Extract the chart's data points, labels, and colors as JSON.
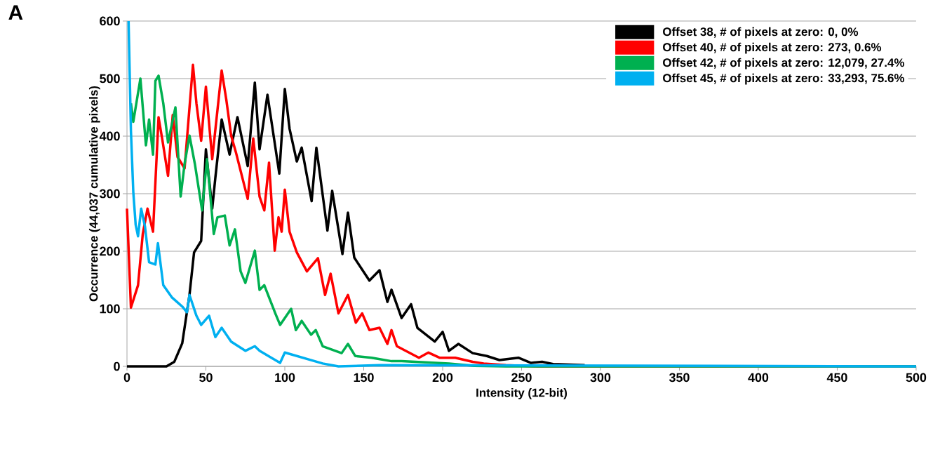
{
  "chart_data": {
    "type": "line",
    "xlabel": "Intensity (12-bit)",
    "ylabel": "Occurrence (44,037 cumulative pixels)",
    "annotations": [
      "A"
    ],
    "xlim": [
      0,
      500
    ],
    "xticks": [
      0,
      50,
      100,
      150,
      200,
      250,
      300,
      350,
      400,
      450,
      500
    ],
    "ylim": [
      0,
      600
    ],
    "yticks": [
      0,
      100,
      200,
      300,
      400,
      500,
      600
    ],
    "grid": "y",
    "legend": "top right",
    "line_style": "solid",
    "marker": "none",
    "series": [
      {
        "name": "Offset 38, # of pixels at zero: 0, 0%",
        "color": "#000000",
        "x": [
          0,
          25,
          30,
          35,
          39.6,
          42.5,
          47,
          50,
          54,
          56,
          60,
          65,
          70,
          76.5,
          81,
          84,
          89,
          96.5,
          100,
          103,
          107.6,
          110.7,
          117,
          120,
          127,
          130,
          136.5,
          140,
          144,
          153.6,
          160,
          165,
          167.6,
          174,
          180,
          184,
          195,
          200,
          204,
          210,
          219,
          228,
          236,
          248,
          256,
          263,
          270,
          290
        ],
        "values": [
          0,
          0,
          8,
          40,
          124,
          198,
          218,
          377,
          274,
          328,
          429,
          368,
          433,
          348,
          493,
          377,
          472,
          335,
          482,
          413,
          356,
          380,
          287,
          380,
          236,
          305,
          195,
          267,
          189,
          149,
          167,
          112,
          133,
          84,
          108,
          67,
          43,
          60,
          27,
          39,
          23,
          18,
          11,
          15,
          6,
          8,
          4,
          2
        ]
      },
      {
        "name": "Offset 40, # of pixels at zero: 273, 0.6%",
        "color": "#ff0000",
        "x": [
          0,
          2.5,
          7,
          10,
          13,
          16.5,
          20,
          22.5,
          26,
          29,
          32,
          36.5,
          41.8,
          44,
          47,
          50,
          54,
          60,
          63,
          66,
          69,
          76.5,
          80,
          84,
          87,
          90,
          93.6,
          96,
          98,
          100,
          103,
          107.6,
          114,
          121,
          125.5,
          129,
          134,
          140,
          145,
          149,
          153.6,
          160,
          165,
          167.6,
          171,
          185,
          191,
          198,
          208,
          219,
          226,
          240,
          260,
          500
        ],
        "values": [
          274,
          102,
          141,
          230,
          274,
          234,
          433,
          392,
          331,
          437,
          364,
          344,
          524,
          457,
          392,
          486,
          360,
          514,
          462,
          401,
          372,
          291,
          396,
          295,
          271,
          354,
          201,
          259,
          234,
          307,
          234,
          198,
          165,
          188,
          124,
          161,
          92,
          124,
          76,
          92,
          63,
          67,
          39,
          63,
          35,
          15,
          24,
          15,
          15,
          8,
          5,
          2,
          0,
          0
        ]
      },
      {
        "name": "Offset 42, # of pixels at zero: 12,079, 27.4%",
        "color": "#00b050",
        "x": [
          2.5,
          4,
          8.5,
          12,
          14,
          16.5,
          18,
          20,
          23,
          26,
          30.7,
          34,
          36.5,
          39.6,
          43,
          47.6,
          50.7,
          55,
          57.3,
          62,
          65,
          68.4,
          72,
          75,
          81,
          84,
          87,
          94,
          97,
          104,
          107,
          110.7,
          116.6,
          119.6,
          124,
          136,
          140,
          144.6,
          155,
          167.6,
          174,
          204,
          220,
          240,
          500
        ],
        "values": [
          457,
          425,
          500,
          384,
          429,
          368,
          496,
          505,
          457,
          389,
          450,
          295,
          352,
          401,
          352,
          271,
          360,
          230,
          259,
          262,
          210,
          238,
          165,
          145,
          201,
          133,
          141,
          92,
          72,
          100,
          63,
          79,
          55,
          63,
          35,
          23,
          39,
          18,
          15,
          9,
          9,
          5,
          1,
          0,
          0
        ]
      },
      {
        "name": "Offset 45, # of pixels at zero: 33,293, 75.6%",
        "color": "#00b0f0",
        "x": [
          1,
          2.5,
          4,
          5.5,
          7,
          9,
          11.4,
          14,
          18,
          19.6,
          23,
          28.4,
          35,
          38,
          39.6,
          44,
          47,
          52,
          56,
          60,
          66,
          75,
          81,
          84,
          97,
          100,
          124,
          134,
          160,
          500
        ],
        "values": [
          600,
          409,
          303,
          246,
          226,
          274,
          243,
          181,
          177,
          214,
          141,
          120,
          104,
          94,
          124,
          88,
          72,
          88,
          51,
          67,
          43,
          27,
          35,
          27,
          6,
          24,
          5,
          0,
          2,
          0
        ]
      }
    ]
  }
}
